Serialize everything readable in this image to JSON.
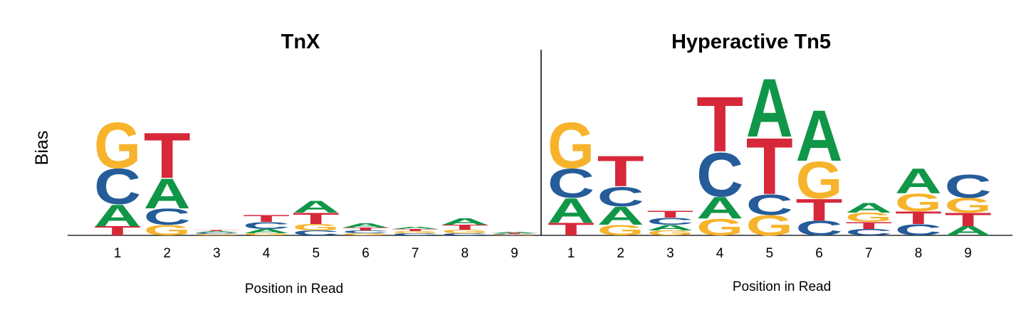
{
  "chart_data": [
    {
      "type": "logo",
      "title": "TnX",
      "xlabel": "Position in Read",
      "ylabel": "Bias",
      "ylim": [
        0,
        230
      ],
      "colors": {
        "A": "#109648",
        "C": "#255c99",
        "G": "#f7b32b",
        "T": "#d62839"
      },
      "categories": [
        "1",
        "2",
        "3",
        "4",
        "5",
        "6",
        "7",
        "8",
        "9"
      ],
      "stacks": [
        [
          {
            "letter": "T",
            "value": 13
          },
          {
            "letter": "A",
            "value": 31
          },
          {
            "letter": "C",
            "value": 51
          },
          {
            "letter": "G",
            "value": 66
          }
        ],
        [
          {
            "letter": "G",
            "value": 15
          },
          {
            "letter": "C",
            "value": 23
          },
          {
            "letter": "A",
            "value": 43
          },
          {
            "letter": "T",
            "value": 65
          }
        ],
        [
          {
            "letter": "G",
            "value": 2
          },
          {
            "letter": "C",
            "value": 2
          },
          {
            "letter": "A",
            "value": 2
          },
          {
            "letter": "T",
            "value": 1
          }
        ],
        [
          {
            "letter": "G",
            "value": 3
          },
          {
            "letter": "A",
            "value": 6
          },
          {
            "letter": "C",
            "value": 10
          },
          {
            "letter": "T",
            "value": 10
          }
        ],
        [
          {
            "letter": "C",
            "value": 7
          },
          {
            "letter": "G",
            "value": 9
          },
          {
            "letter": "T",
            "value": 16
          },
          {
            "letter": "A",
            "value": 17
          }
        ],
        [
          {
            "letter": "G",
            "value": 3
          },
          {
            "letter": "C",
            "value": 4
          },
          {
            "letter": "T",
            "value": 4
          },
          {
            "letter": "A",
            "value": 6
          }
        ],
        [
          {
            "letter": "C",
            "value": 3
          },
          {
            "letter": "G",
            "value": 3
          },
          {
            "letter": "T",
            "value": 3
          },
          {
            "letter": "A",
            "value": 3
          }
        ],
        [
          {
            "letter": "C",
            "value": 3
          },
          {
            "letter": "G",
            "value": 5
          },
          {
            "letter": "T",
            "value": 7
          },
          {
            "letter": "A",
            "value": 9
          }
        ],
        [
          {
            "letter": "G",
            "value": 1
          },
          {
            "letter": "C",
            "value": 1
          },
          {
            "letter": "T",
            "value": 1
          },
          {
            "letter": "A",
            "value": 2
          }
        ]
      ]
    },
    {
      "type": "logo",
      "title": "Hyperactive Tn5",
      "xlabel": "Position in Read",
      "ylim": [
        0,
        230
      ],
      "colors": {
        "A": "#109648",
        "C": "#255c99",
        "G": "#f7b32b",
        "T": "#d62839"
      },
      "categories": [
        "1",
        "2",
        "3",
        "4",
        "5",
        "6",
        "7",
        "8",
        "9"
      ],
      "stacks": [
        [
          {
            "letter": "T",
            "value": 18
          },
          {
            "letter": "A",
            "value": 35
          },
          {
            "letter": "C",
            "value": 42
          },
          {
            "letter": "G",
            "value": 66
          }
        ],
        [
          {
            "letter": "G",
            "value": 15
          },
          {
            "letter": "A",
            "value": 26
          },
          {
            "letter": "C",
            "value": 28
          },
          {
            "letter": "T",
            "value": 44
          }
        ],
        [
          {
            "letter": "G",
            "value": 7
          },
          {
            "letter": "A",
            "value": 8
          },
          {
            "letter": "C",
            "value": 10
          },
          {
            "letter": "T",
            "value": 10
          }
        ],
        [
          {
            "letter": "G",
            "value": 24
          },
          {
            "letter": "A",
            "value": 31
          },
          {
            "letter": "C",
            "value": 63
          },
          {
            "letter": "T",
            "value": 79
          }
        ],
        [
          {
            "letter": "G",
            "value": 29
          },
          {
            "letter": "C",
            "value": 29
          },
          {
            "letter": "T",
            "value": 81
          },
          {
            "letter": "A",
            "value": 84
          }
        ],
        [
          {
            "letter": "C",
            "value": 21
          },
          {
            "letter": "T",
            "value": 31
          },
          {
            "letter": "G",
            "value": 53
          },
          {
            "letter": "A",
            "value": 73
          }
        ],
        [
          {
            "letter": "C",
            "value": 9
          },
          {
            "letter": "T",
            "value": 10
          },
          {
            "letter": "G",
            "value": 13
          },
          {
            "letter": "A",
            "value": 14
          }
        ],
        [
          {
            "letter": "C",
            "value": 16
          },
          {
            "letter": "T",
            "value": 18
          },
          {
            "letter": "G",
            "value": 25
          },
          {
            "letter": "A",
            "value": 36
          }
        ],
        [
          {
            "letter": "A",
            "value": 13
          },
          {
            "letter": "T",
            "value": 19
          },
          {
            "letter": "G",
            "value": 21
          },
          {
            "letter": "C",
            "value": 33
          }
        ]
      ]
    }
  ]
}
